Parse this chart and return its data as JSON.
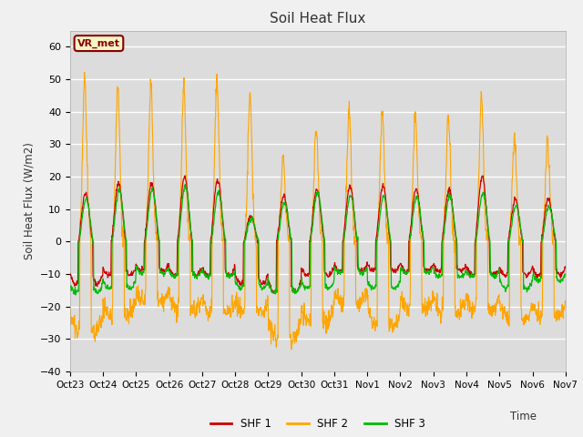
{
  "title": "Soil Heat Flux",
  "ylabel": "Soil Heat Flux (W/m2)",
  "xlabel": "Time",
  "ylim": [
    -40,
    65
  ],
  "yticks": [
    -40,
    -30,
    -20,
    -10,
    0,
    10,
    20,
    30,
    40,
    50,
    60
  ],
  "plot_bg_color": "#dcdcdc",
  "fig_bg_color": "#f0f0f0",
  "annotation_text": "VR_met",
  "annotation_box_color": "#f5f5c8",
  "annotation_border_color": "#8B0000",
  "shf1_color": "#cc0000",
  "shf2_color": "#FFA500",
  "shf3_color": "#00bb00",
  "legend_labels": [
    "SHF 1",
    "SHF 2",
    "SHF 3"
  ],
  "xtick_labels": [
    "Oct 23",
    "Oct 24",
    "Oct 25",
    "Oct 26",
    "Oct 27",
    "Oct 28",
    "Oct 29",
    "Oct 30",
    "Oct 31",
    "Nov 1",
    "Nov 2",
    "Nov 3",
    "Nov 4",
    "Nov 5",
    "Nov 6",
    "Nov 7"
  ],
  "num_days": 15,
  "pts_per_day": 96,
  "shf2_peaks": [
    50,
    48,
    48,
    48,
    50,
    45,
    26,
    35,
    41,
    40,
    39,
    39,
    44,
    31,
    31
  ],
  "shf1_peaks": [
    15,
    18,
    18,
    20,
    19,
    8,
    14,
    16,
    17,
    17,
    16,
    16,
    20,
    13,
    13
  ],
  "shf3_peaks": [
    13,
    16,
    16,
    17,
    15,
    7,
    12,
    15,
    14,
    14,
    14,
    14,
    15,
    11,
    11
  ],
  "shf2_neg": [
    -28,
    -23,
    -19,
    -21,
    -22,
    -22,
    -30,
    -25,
    -19,
    -26,
    -21,
    -22,
    -21,
    -24,
    -23
  ],
  "shf1_neg": [
    -10,
    -8,
    -7,
    -8,
    -8,
    -10,
    -12,
    -8,
    -7,
    -7,
    -7,
    -7,
    -8,
    -8,
    -8
  ],
  "shf3_neg": [
    -13,
    -12,
    -8,
    -9,
    -9,
    -12,
    -13,
    -12,
    -8,
    -12,
    -8,
    -9,
    -9,
    -12,
    -10
  ]
}
